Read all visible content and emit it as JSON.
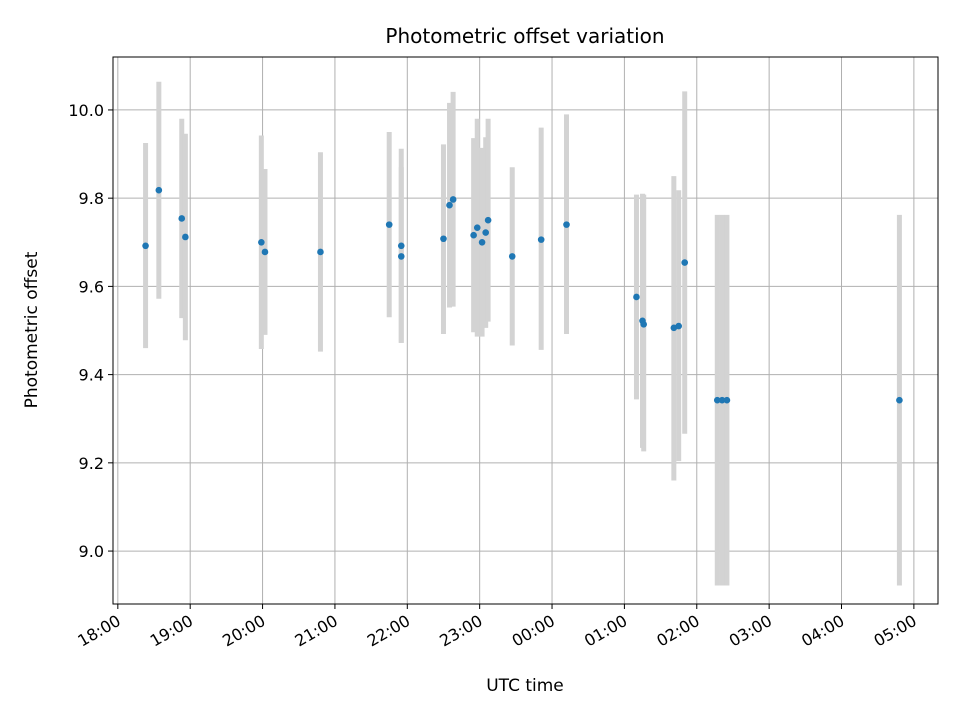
{
  "chart_data": {
    "type": "scatter",
    "title": "Photometric offset variation",
    "xlabel": "UTC time",
    "ylabel": "Photometric offset",
    "x_axis_kind": "time",
    "xlim": [
      "17:56",
      "05:20"
    ],
    "ylim": [
      8.88,
      10.12
    ],
    "grid": true,
    "x_ticks": [
      "18:00",
      "19:00",
      "20:00",
      "21:00",
      "22:00",
      "23:00",
      "00:00",
      "01:00",
      "02:00",
      "03:00",
      "04:00",
      "05:00"
    ],
    "y_ticks": [
      9.0,
      9.2,
      9.4,
      9.6,
      9.8,
      10.0
    ],
    "marker_color": "#1f77b4",
    "errorbar_color": "#d3d3d3",
    "points": [
      {
        "x": "18:23",
        "y": 9.692,
        "ymin": 9.46,
        "ymax": 9.925
      },
      {
        "x": "18:34",
        "y": 9.818,
        "ymin": 9.572,
        "ymax": 10.064
      },
      {
        "x": "18:53",
        "y": 9.754,
        "ymin": 9.528,
        "ymax": 9.98
      },
      {
        "x": "18:56",
        "y": 9.712,
        "ymin": 9.478,
        "ymax": 9.946
      },
      {
        "x": "19:59",
        "y": 9.7,
        "ymin": 9.458,
        "ymax": 9.942
      },
      {
        "x": "20:02",
        "y": 9.678,
        "ymin": 9.49,
        "ymax": 9.866
      },
      {
        "x": "20:48",
        "y": 9.678,
        "ymin": 9.452,
        "ymax": 9.904
      },
      {
        "x": "21:45",
        "y": 9.74,
        "ymin": 9.53,
        "ymax": 9.95
      },
      {
        "x": "21:55",
        "y": 9.692,
        "ymin": 9.472,
        "ymax": 9.912
      },
      {
        "x": "21:55",
        "y": 9.668,
        "ymin": 9.472,
        "ymax": 9.87
      },
      {
        "x": "22:30",
        "y": 9.708,
        "ymin": 9.492,
        "ymax": 9.922
      },
      {
        "x": "22:35",
        "y": 9.784,
        "ymin": 9.552,
        "ymax": 10.016
      },
      {
        "x": "22:38",
        "y": 9.797,
        "ymin": 9.554,
        "ymax": 10.041
      },
      {
        "x": "22:55",
        "y": 9.716,
        "ymin": 9.496,
        "ymax": 9.936
      },
      {
        "x": "22:58",
        "y": 9.733,
        "ymin": 9.486,
        "ymax": 9.98
      },
      {
        "x": "23:02",
        "y": 9.7,
        "ymin": 9.486,
        "ymax": 9.914
      },
      {
        "x": "23:05",
        "y": 9.722,
        "ymin": 9.506,
        "ymax": 9.938
      },
      {
        "x": "23:07",
        "y": 9.75,
        "ymin": 9.52,
        "ymax": 9.98
      },
      {
        "x": "23:27",
        "y": 9.668,
        "ymin": 9.466,
        "ymax": 9.87
      },
      {
        "x": "23:51",
        "y": 9.706,
        "ymin": 9.456,
        "ymax": 9.96
      },
      {
        "x": "00:12",
        "y": 9.74,
        "ymin": 9.492,
        "ymax": 9.99
      },
      {
        "x": "01:10",
        "y": 9.576,
        "ymin": 9.344,
        "ymax": 9.808
      },
      {
        "x": "01:15",
        "y": 9.522,
        "ymin": 9.234,
        "ymax": 9.81
      },
      {
        "x": "01:16",
        "y": 9.514,
        "ymin": 9.226,
        "ymax": 9.808
      },
      {
        "x": "01:41",
        "y": 9.506,
        "ymin": 9.16,
        "ymax": 9.85
      },
      {
        "x": "01:45",
        "y": 9.51,
        "ymin": 9.204,
        "ymax": 9.818
      },
      {
        "x": "01:50",
        "y": 9.654,
        "ymin": 9.266,
        "ymax": 10.042
      },
      {
        "x": "02:17",
        "y": 9.342,
        "ymin": 8.922,
        "ymax": 9.762
      },
      {
        "x": "02:21",
        "y": 9.342,
        "ymin": 8.922,
        "ymax": 9.762
      },
      {
        "x": "02:25",
        "y": 9.342,
        "ymin": 8.922,
        "ymax": 9.762
      },
      {
        "x": "04:48",
        "y": 9.342,
        "ymin": 8.922,
        "ymax": 9.762
      }
    ]
  }
}
